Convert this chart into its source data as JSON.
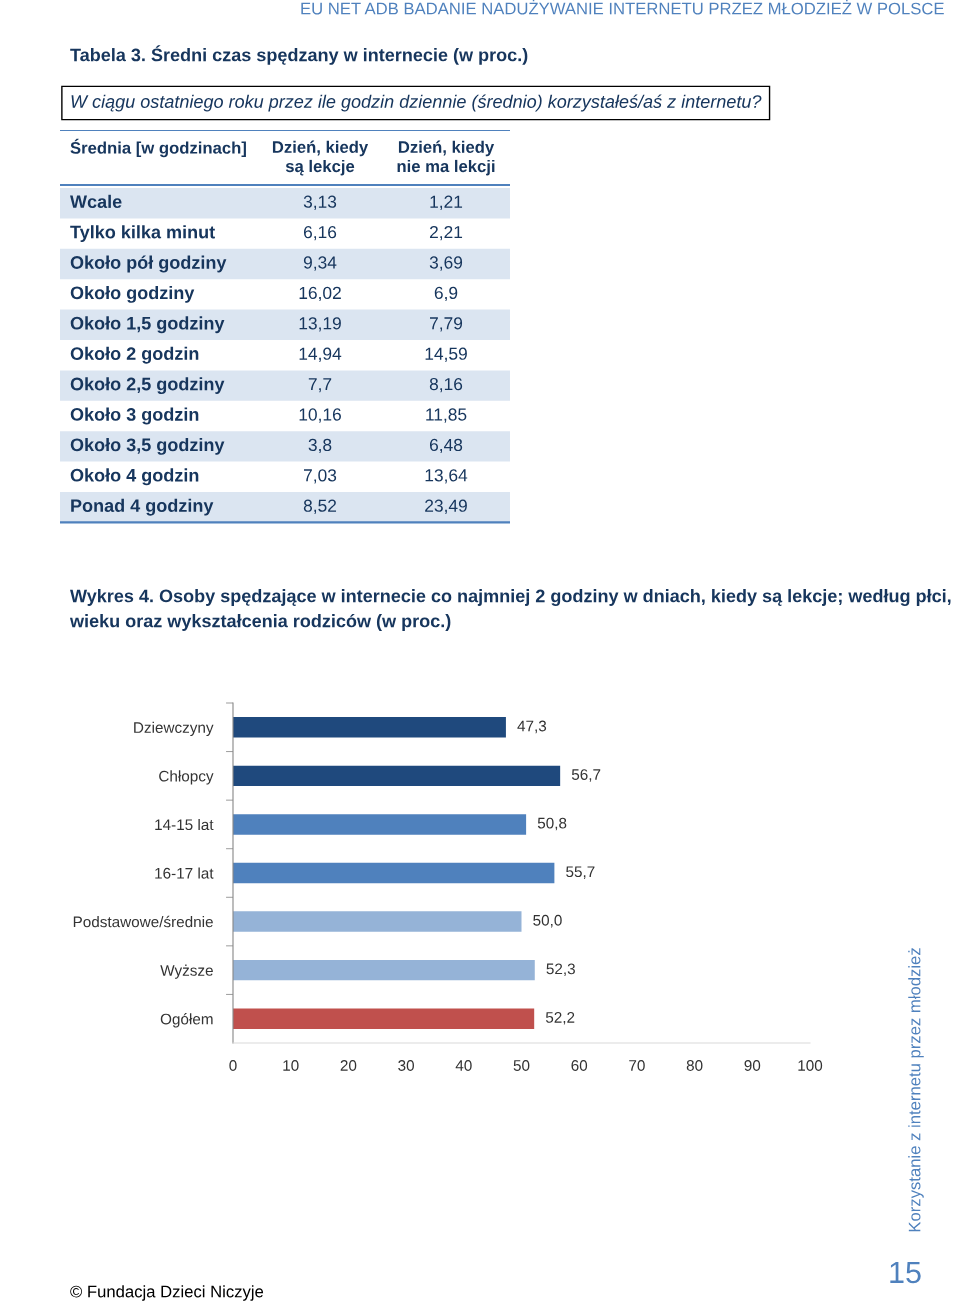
{
  "chart_data": [
    {
      "type": "other",
      "title": "Tabela 3. Średni czas spędzany w internecie (w proc.)",
      "subtitle": "W ciągu ostatniego roku przez ile godzin dziennie (średnio) korzystałeś/aś z internetu?",
      "ylabel": "Średnia [w godzinach]",
      "annotations": [
        "EU NET ADB BADANIE NADUŻYWANIE INTERNETU PRZEZ MŁODZIEŻ W POLSCE"
      ],
      "categories": [
        "Wcale",
        "Tylko kilka minut",
        "Około pół godziny",
        "Około godziny",
        "Około 1,5 godziny",
        "Około 2 godzin",
        "Około 2,5 godziny",
        "Około 3 godzin",
        "Około 3,5 godziny",
        "Około 4 godzin",
        "Ponad 4 godziny"
      ],
      "series": [
        {
          "name": "Dzień, kiedy\nsą lekcje",
          "values": [
            3.13,
            6.16,
            9.34,
            16.02,
            13.19,
            14.94,
            7.7,
            10.16,
            3.8,
            7.03,
            8.52
          ],
          "value_labels": [
            "3,13",
            "6,16",
            "9,34",
            "16,02",
            "13,19",
            "14,94",
            "7,7",
            "10,16",
            "3,8",
            "7,03",
            "8,52"
          ]
        },
        {
          "name": "Dzień, kiedy\nnie ma lekcji",
          "values": [
            1.21,
            2.21,
            3.69,
            6.9,
            7.79,
            14.59,
            8.16,
            11.85,
            6.48,
            13.64,
            23.49
          ],
          "value_labels": [
            "1,21",
            "2,21",
            "3,69",
            "6,9",
            "7,79",
            "14,59",
            "8,16",
            "11,85",
            "6,48",
            "13,64",
            "23,49"
          ]
        }
      ]
    },
    {
      "type": "bar",
      "orientation": "horizontal",
      "title": "Wykres 4. Osoby spędzające w internecie co najmniej 2 godziny w dniach, kiedy są lekcje; według płci, wieku oraz wykształcenia rodziców (w proc.)",
      "annotations": [
        "Korzystanie z internetu przez młodzież",
        "15",
        "© Fundacja Dzieci Niczyje"
      ],
      "categories": [
        "Dziewczyny",
        "Chłopcy",
        "14-15 lat",
        "16-17 lat",
        "Podstawowe/średnie",
        "Wyższe",
        "Ogółem"
      ],
      "values": [
        47.3,
        56.7,
        50.8,
        55.7,
        50.0,
        52.3,
        52.2
      ],
      "value_labels": [
        "47,3",
        "56,7",
        "50,8",
        "55,7",
        "50,0",
        "52,3",
        "52,2"
      ],
      "colors": [
        "#1f497d",
        "#1f497d",
        "#4f81bd",
        "#4f81bd",
        "#95b3d7",
        "#95b3d7",
        "#c0504d"
      ],
      "xlim": [
        0,
        100
      ],
      "xticks": [
        0,
        10,
        20,
        30,
        40,
        50,
        60,
        70,
        80,
        90,
        100
      ],
      "grid": false,
      "legend": false
    }
  ]
}
